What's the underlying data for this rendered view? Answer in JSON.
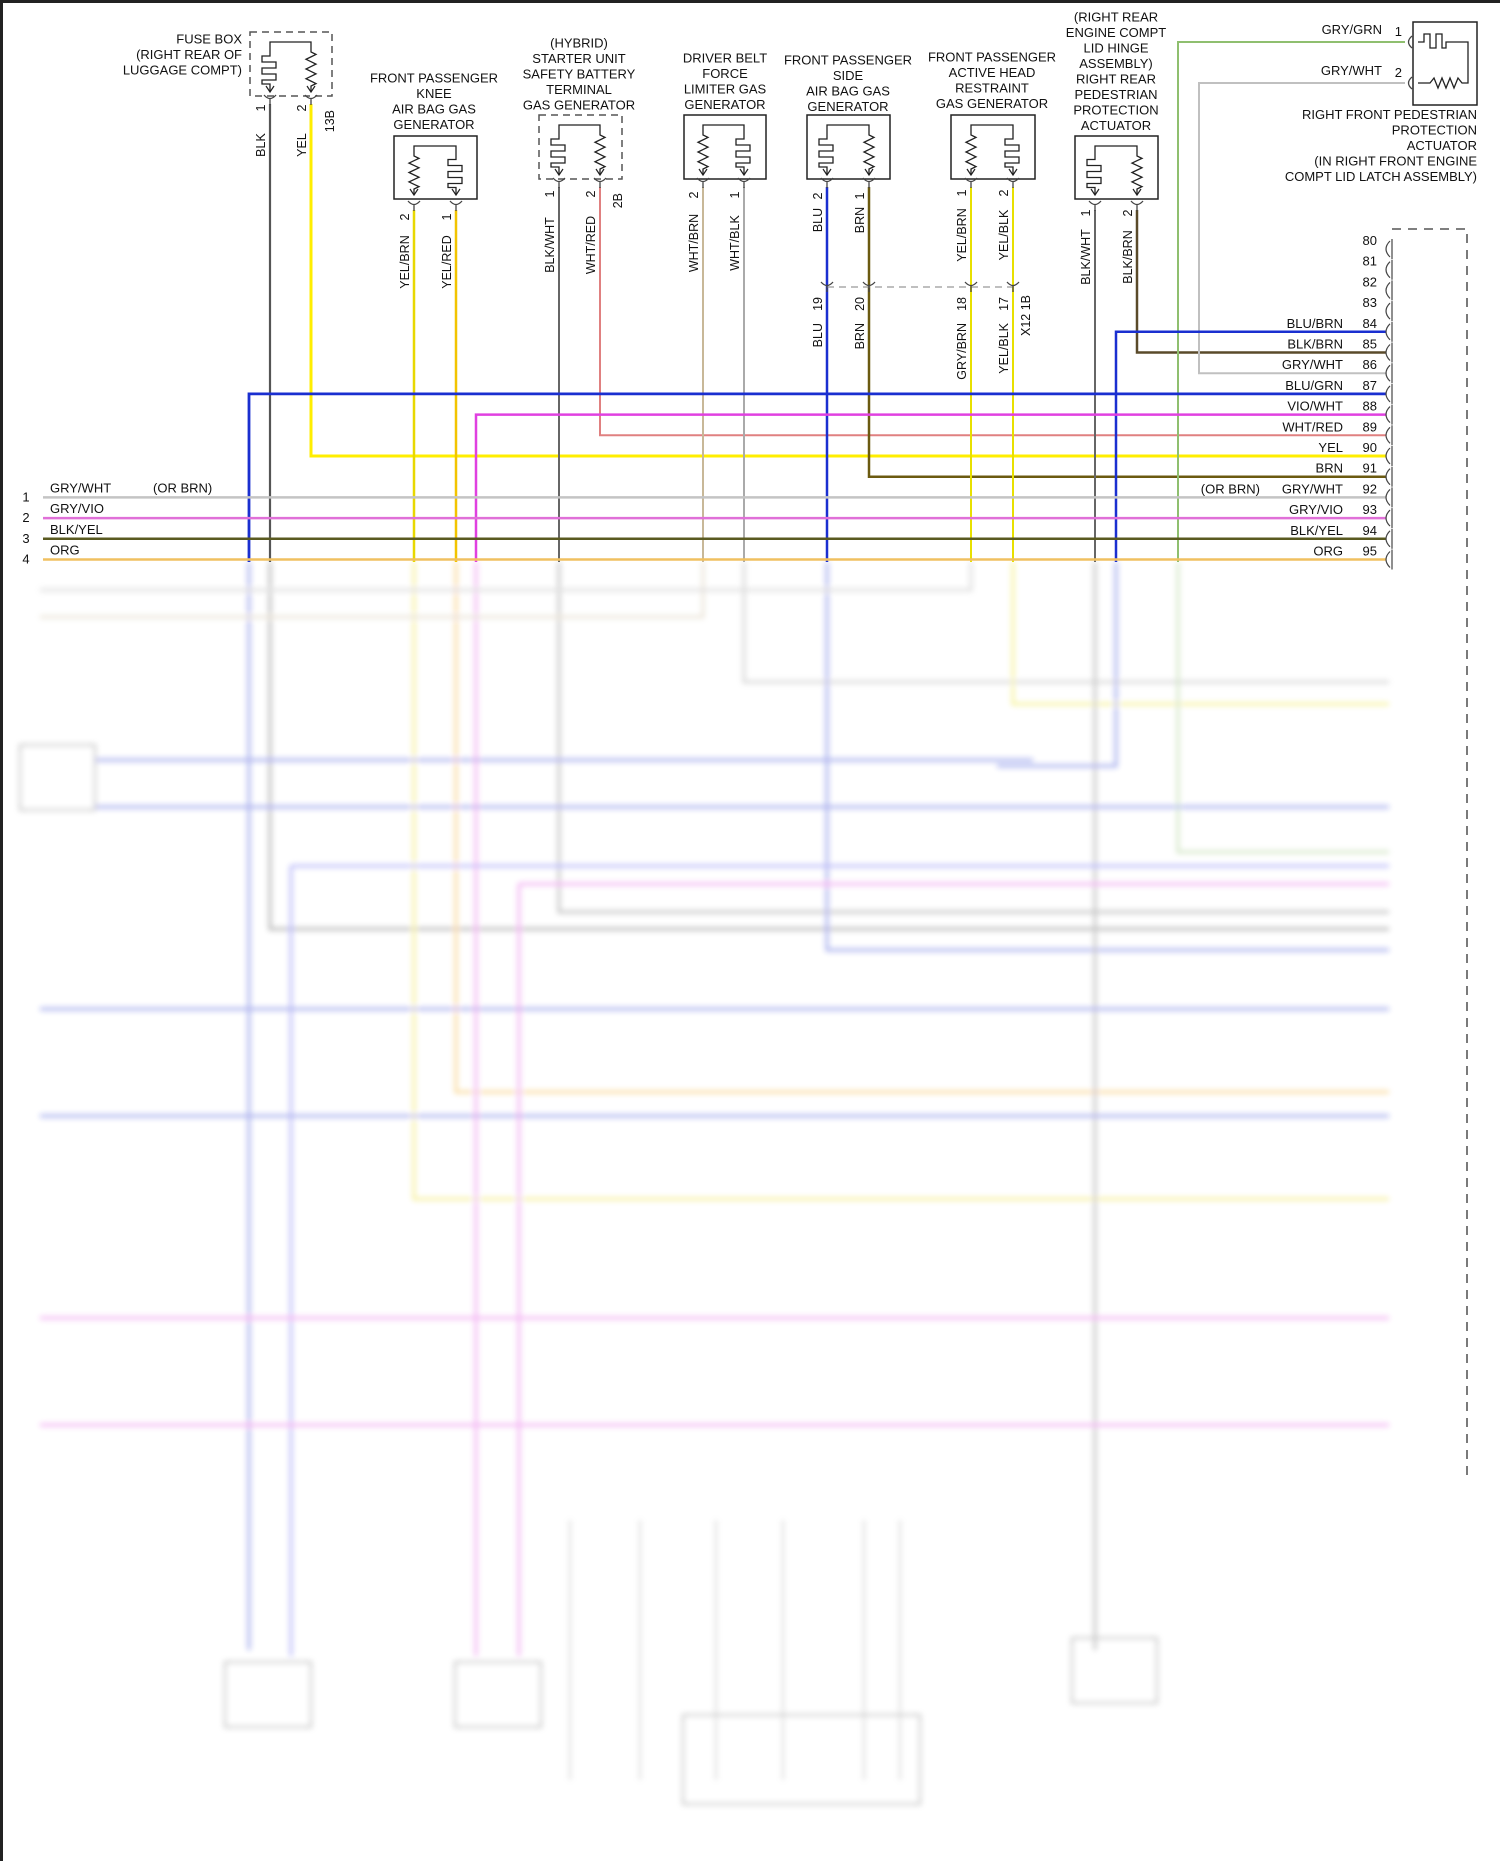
{
  "components": [
    {
      "id": "fuse-box",
      "label": [
        "FUSE BOX",
        "(RIGHT REAR OF",
        "LUGGAGE COMPT)"
      ],
      "pins": [
        {
          "num": "1",
          "wire": "BLK",
          "color": "#555555"
        },
        {
          "num": "2",
          "wire": "YEL",
          "color": "#ffee00"
        }
      ],
      "connector": "13B"
    },
    {
      "id": "front-passenger-knee-air-bag",
      "label": [
        "FRONT PASSENGER",
        "KNEE",
        "AIR BAG GAS",
        "GENERATOR"
      ],
      "pins": [
        {
          "num": "2",
          "wire": "YEL/BRN",
          "color": "#e8d800"
        },
        {
          "num": "1",
          "wire": "YEL/RED",
          "color": "#f2c400"
        }
      ]
    },
    {
      "id": "hybrid-starter-unit",
      "label": [
        "(HYBRID)",
        "STARTER UNIT",
        "SAFETY BATTERY",
        "TERMINAL",
        "GAS GENERATOR"
      ],
      "pins": [
        {
          "num": "1",
          "wire": "BLK/WHT",
          "color": "#666666"
        },
        {
          "num": "2",
          "wire": "WHT/RED",
          "color": "#e08080"
        }
      ],
      "connector": "2B"
    },
    {
      "id": "driver-belt-force-limiter",
      "label": [
        "DRIVER BELT",
        "FORCE",
        "LIMITER GAS",
        "GENERATOR"
      ],
      "pins": [
        {
          "num": "2",
          "wire": "WHT/BRN",
          "color": "#c8b898"
        },
        {
          "num": "1",
          "wire": "WHT/BLK",
          "color": "#aaaaaa"
        }
      ]
    },
    {
      "id": "front-passenger-side-air-bag",
      "label": [
        "FRONT PASSENGER",
        "SIDE",
        "AIR BAG GAS",
        "GENERATOR"
      ],
      "pins": [
        {
          "num": "2",
          "wire": "BLU",
          "color": "#1a2fd0"
        },
        {
          "num": "1",
          "wire": "BRN",
          "color": "#6b5a10"
        }
      ]
    },
    {
      "id": "front-passenger-active-head-restraint",
      "label": [
        "FRONT PASSENGER",
        "ACTIVE HEAD",
        "RESTRAINT",
        "GAS GENERATOR"
      ],
      "pins": [
        {
          "num": "1",
          "wire": "YEL/BRN",
          "color": "#e8e000"
        },
        {
          "num": "2",
          "wire": "YEL/BLK",
          "color": "#e8e000"
        }
      ]
    },
    {
      "id": "right-rear-pedestrian-protection-actuator",
      "label": [
        "(RIGHT REAR",
        "ENGINE COMPT",
        "LID HINGE",
        "ASSEMBLY)",
        "RIGHT REAR",
        "PEDESTRIAN",
        "PROTECTION",
        "ACTUATOR"
      ],
      "pins": [
        {
          "num": "1",
          "wire": "BLK/WHT",
          "color": "#666666"
        },
        {
          "num": "2",
          "wire": "BLK/BRN",
          "color": "#5a4a2a"
        }
      ]
    },
    {
      "id": "right-front-pedestrian-protection-actuator",
      "label": [
        "RIGHT FRONT PEDESTRIAN",
        "PROTECTION",
        "ACTUATOR",
        "(IN RIGHT FRONT ENGINE",
        "COMPT LID LATCH ASSEMBLY)"
      ],
      "pins": [
        {
          "num": "1",
          "wire": "GRY/GRN",
          "color": "#8fbf6f"
        },
        {
          "num": "2",
          "wire": "GRY/WHT",
          "color": "#c0c0c0"
        }
      ]
    }
  ],
  "inline_connector": {
    "name": "X12 1B",
    "pins": [
      {
        "num": "19",
        "wire": "BLU"
      },
      {
        "num": "20",
        "wire": "BRN"
      },
      {
        "num": "18",
        "wire": "GRY/BRN"
      },
      {
        "num": "17",
        "wire": "YEL/BLK"
      }
    ]
  },
  "right_connector_rows": [
    {
      "num": "80",
      "wire": ""
    },
    {
      "num": "81",
      "wire": ""
    },
    {
      "num": "82",
      "wire": ""
    },
    {
      "num": "83",
      "wire": ""
    },
    {
      "num": "84",
      "wire": "BLU/BRN",
      "color": "#1a2fd0"
    },
    {
      "num": "85",
      "wire": "BLK/BRN",
      "color": "#5a4a2a"
    },
    {
      "num": "86",
      "wire": "GRY/WHT",
      "color": "#c0c0c0"
    },
    {
      "num": "87",
      "wire": "BLU/GRN",
      "color": "#1a2fd0"
    },
    {
      "num": "88",
      "wire": "VIO/WHT",
      "color": "#e040e0"
    },
    {
      "num": "89",
      "wire": "WHT/RED",
      "color": "#e09090"
    },
    {
      "num": "90",
      "wire": "YEL",
      "color": "#ffee00"
    },
    {
      "num": "91",
      "wire": "BRN",
      "color": "#6b5a10"
    },
    {
      "num": "92",
      "wire": "GRY/WHT",
      "color": "#c4c4c4",
      "note": "(OR BRN)"
    },
    {
      "num": "93",
      "wire": "GRY/VIO",
      "color": "#e070d8"
    },
    {
      "num": "94",
      "wire": "BLK/YEL",
      "color": "#5a5a20"
    },
    {
      "num": "95",
      "wire": "ORG",
      "color": "#f0c060"
    }
  ],
  "left_rows": [
    {
      "num": "1",
      "wire": "GRY/WHT",
      "note": "(OR BRN)"
    },
    {
      "num": "2",
      "wire": "GRY/VIO"
    },
    {
      "num": "3",
      "wire": "BLK/YEL"
    },
    {
      "num": "4",
      "wire": "ORG"
    }
  ]
}
